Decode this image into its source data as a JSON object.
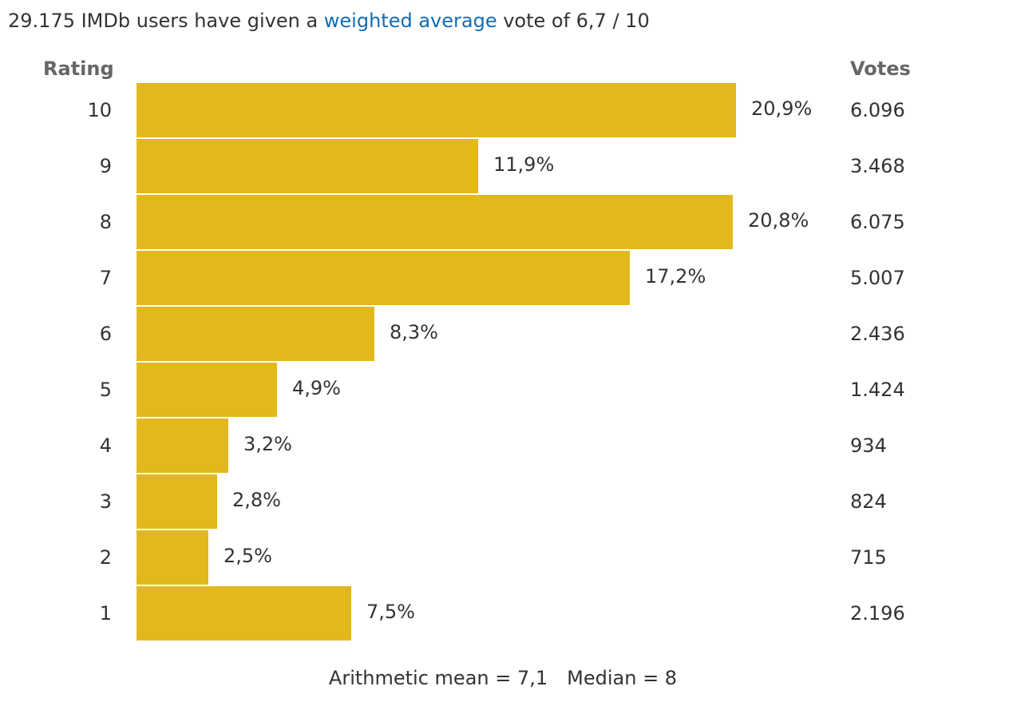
{
  "summary": {
    "prefix": "29.175 IMDb users have given a ",
    "link": "weighted average",
    "suffix": " vote of 6,7 / 10"
  },
  "headers": {
    "rating": "Rating",
    "votes": "Votes"
  },
  "chart_data": {
    "type": "bar",
    "orientation": "horizontal",
    "title": "29.175 IMDb users have given a weighted average vote of 6,7 / 10",
    "ylabel": "Rating",
    "categories": [
      "10",
      "9",
      "8",
      "7",
      "6",
      "5",
      "4",
      "3",
      "2",
      "1"
    ],
    "percent_values": [
      20.9,
      11.9,
      20.8,
      17.2,
      8.3,
      4.9,
      3.2,
      2.8,
      2.5,
      7.5
    ],
    "percent_labels": [
      "20,9%",
      "11,9%",
      "20,8%",
      "17,2%",
      "8,3%",
      "4,9%",
      "3,2%",
      "2,8%",
      "2,5%",
      "7,5%"
    ],
    "votes": [
      "6.096",
      "3.468",
      "6.075",
      "5.007",
      "2.436",
      "1.424",
      "934",
      "824",
      "715",
      "2.196"
    ],
    "xlim": [
      0,
      20.9
    ],
    "bar_color": "#e2b81e",
    "grid": false
  },
  "stats": {
    "mean": "Arithmetic mean = 7,1",
    "median": "Median = 8"
  }
}
